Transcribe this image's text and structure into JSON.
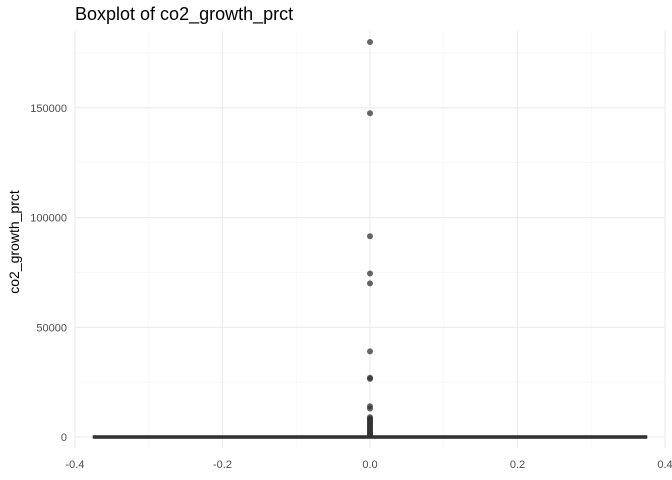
{
  "chart_data": {
    "type": "box",
    "title": "Boxplot of co2_growth_prct",
    "xlabel": "",
    "ylabel": "co2_growth_prct",
    "xlim": [
      -0.4,
      0.4
    ],
    "ylim": [
      -5000,
      185000
    ],
    "x_ticks": [
      -0.4,
      -0.2,
      0.0,
      0.2,
      0.4
    ],
    "x_tick_labels": [
      "-0.4",
      "-0.2",
      "0.0",
      "0.2",
      "0.4"
    ],
    "y_ticks": [
      0,
      50000,
      100000,
      150000
    ],
    "y_tick_labels": [
      "0",
      "50000",
      "100000",
      "150000"
    ],
    "grid": true,
    "box": {
      "x_center": 0.0,
      "x_extent": [
        -0.375,
        0.375
      ],
      "min": -100,
      "q1": 0,
      "median": 5,
      "q3": 15,
      "max": 45
    },
    "outliers": [
      180000,
      147500,
      91500,
      74500,
      70000,
      39000,
      27000,
      26500,
      14000,
      13000,
      9000,
      8500,
      8000,
      7500,
      7000,
      6500,
      6000,
      5500,
      5000,
      4500,
      4000,
      3500,
      3000,
      2500,
      2000,
      1600,
      1200,
      900,
      600
    ],
    "outlier_color": "#333333",
    "box_color": "#333333"
  }
}
